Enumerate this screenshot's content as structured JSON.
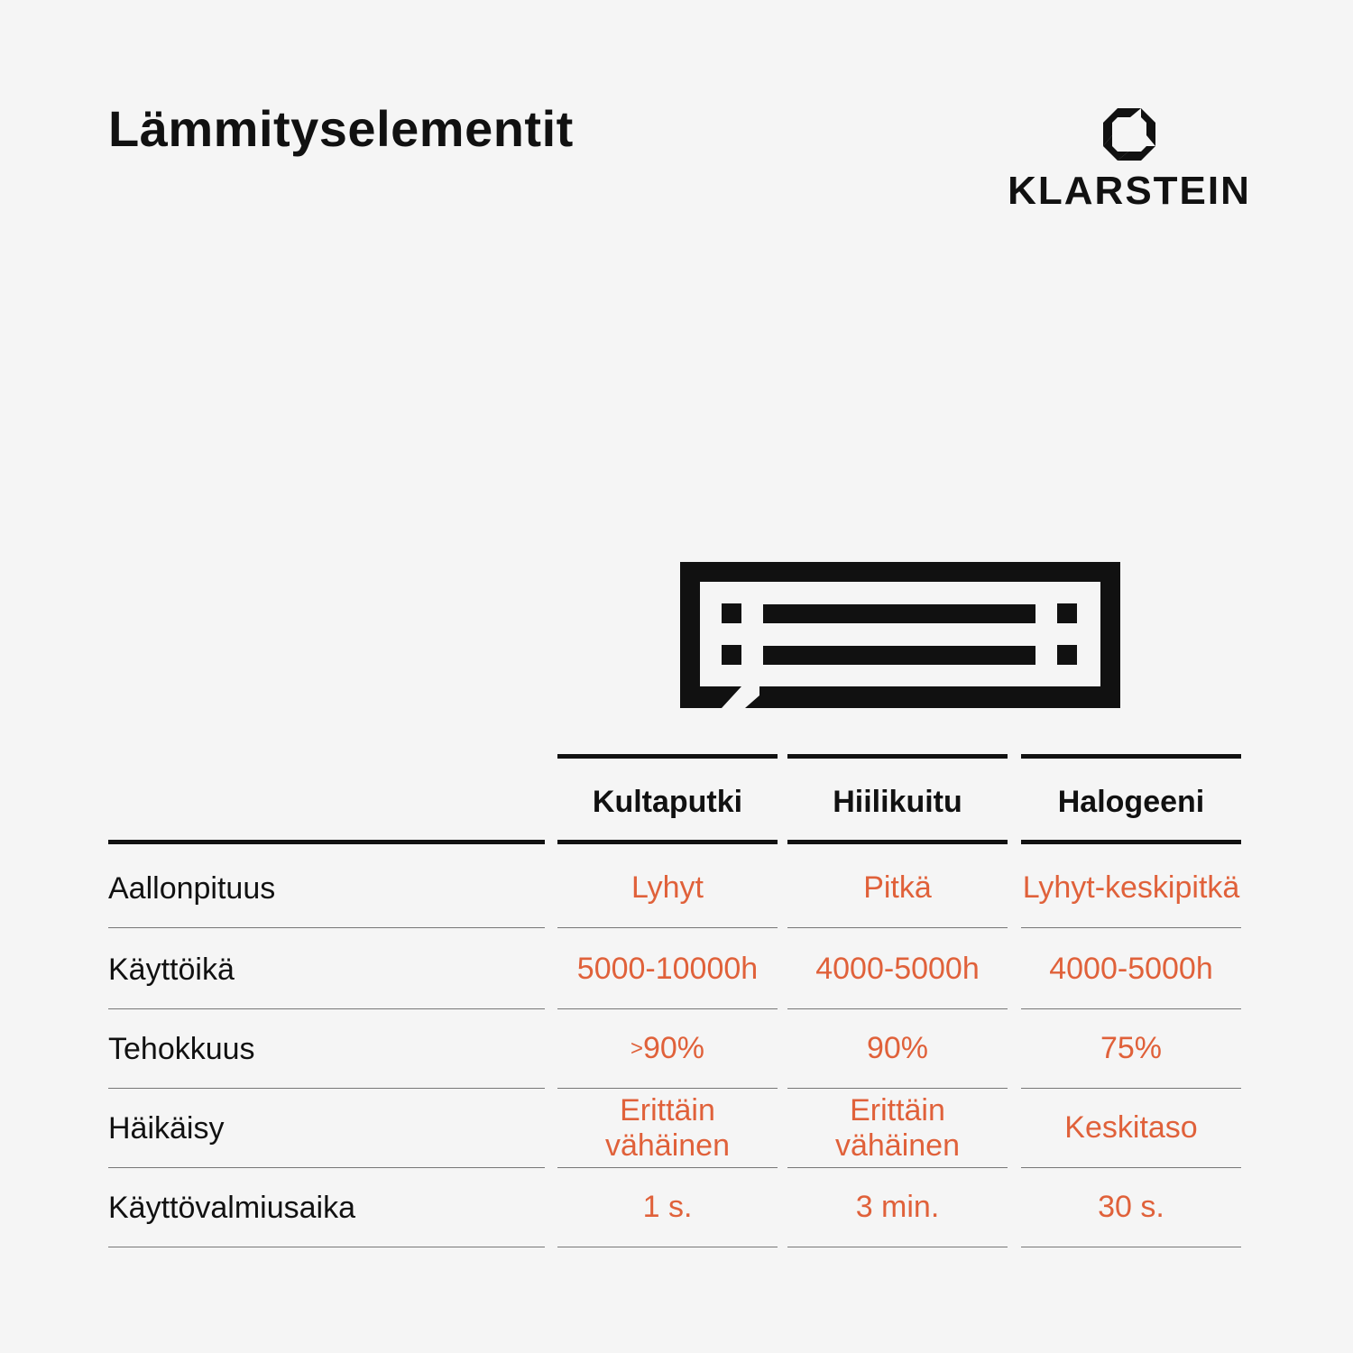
{
  "title": "Lämmityselementit",
  "brand": {
    "name": "KLARSTEIN",
    "icon": "klarstein-logo-icon"
  },
  "illustration": {
    "icon": "infrared-heater-icon"
  },
  "colors": {
    "background": "#f5f5f5",
    "text": "#111111",
    "accent": "#e0613a"
  },
  "table": {
    "columns": [
      "Kultaputki",
      "Hiilikuitu",
      "Halogeeni"
    ],
    "rows": [
      {
        "label": "Aallonpituus",
        "values": [
          "Lyhyt",
          "Pitkä",
          "Lyhyt-keskipitkä"
        ]
      },
      {
        "label": "Käyttöikä",
        "values": [
          "5000-10000h",
          "4000-5000h",
          "4000-5000h"
        ]
      },
      {
        "label": "Tehokkuus",
        "values": [
          {
            "prefix": ">",
            "text": "90%"
          },
          "90%",
          "75%"
        ]
      },
      {
        "label": "Häikäisy",
        "values": [
          [
            "Erittäin",
            "vähäinen"
          ],
          [
            "Erittäin",
            "vähäinen"
          ],
          "Keskitaso"
        ]
      },
      {
        "label": "Käyttövalmiusaika",
        "values": [
          "1 s.",
          "3 min.",
          "30 s."
        ]
      }
    ]
  }
}
